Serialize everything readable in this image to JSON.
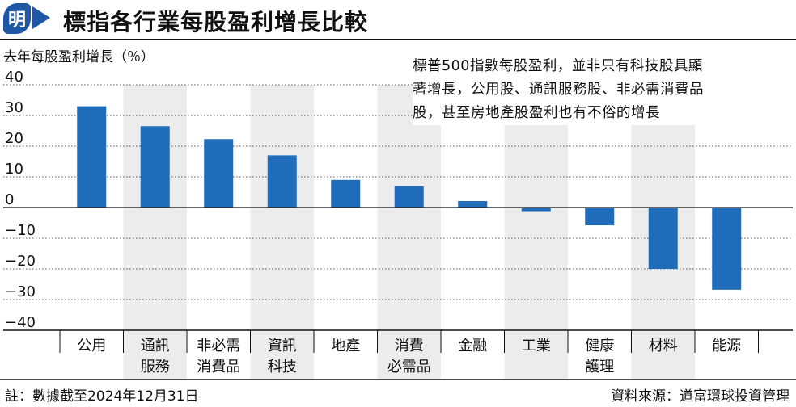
{
  "header": {
    "logo_text": "明",
    "title": "標指各行業每股盈利增長比較"
  },
  "colors": {
    "brand": "#1f57a4",
    "bar": "#1f6cbb",
    "band": "#ececec",
    "grid": "#555555"
  },
  "annotation": {
    "lines": [
      "標普500指數每股盈利，並非只有科技股具顯",
      "著增長，公用股、通訊服務股、非必需消費品",
      "股，甚至房地產股盈利也有不俗的增長"
    ]
  },
  "footer": {
    "note": "註：數據截至2024年12月31日",
    "source": "資料來源：道富環球投資管理"
  },
  "chart_data": {
    "type": "bar",
    "ylabel": "去年每股盈利增長（％）",
    "ylim": [
      -40,
      40
    ],
    "yticks": [
      40,
      30,
      20,
      10,
      0,
      -10,
      -20,
      -30,
      -40
    ],
    "ytick_labels": [
      "40",
      "30",
      "20",
      "10",
      "0",
      "−10",
      "−20",
      "−30",
      "−40"
    ],
    "grid": "dotted horizontal",
    "categories": [
      [
        "公用"
      ],
      [
        "通訊",
        "服務"
      ],
      [
        "非必需",
        "消費品"
      ],
      [
        "資訊",
        "科技"
      ],
      [
        "地產"
      ],
      [
        "消費",
        "必需品"
      ],
      [
        "金融"
      ],
      [
        "工業"
      ],
      [
        "健康",
        "護理"
      ],
      [
        "材料"
      ],
      [
        "能源"
      ]
    ],
    "values": [
      33,
      26.5,
      22.3,
      17,
      9,
      7.1,
      2.1,
      -1.2,
      -5.8,
      -20,
      -26.8
    ],
    "shaded_categories": [
      1,
      3,
      5,
      7,
      9
    ]
  }
}
